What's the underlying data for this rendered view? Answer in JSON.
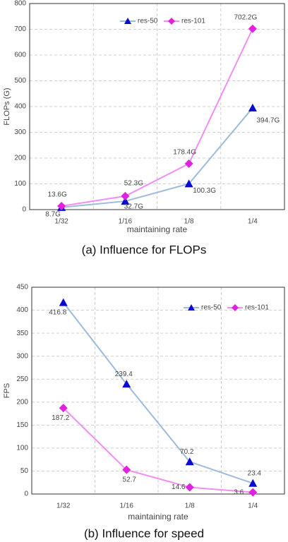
{
  "chart_data": [
    {
      "type": "line",
      "caption": "(a) Influence for FLOPs",
      "x_label": "maintaining rate",
      "y_label": "FLOPs (G)",
      "categories": [
        "1/32",
        "1/16",
        "1/8",
        "1/4"
      ],
      "series": [
        {
          "name": "res-50",
          "color": "#9dbbdb",
          "marker_color": "#0a0ad0",
          "marker": "triangle",
          "values": [
            8.7,
            32.7,
            100.3,
            394.7
          ],
          "value_labels": [
            "8.7G",
            "32.7G",
            "100.3G",
            "394.7G"
          ]
        },
        {
          "name": "res-101",
          "color": "#f28ef2",
          "marker_color": "#e022e0",
          "marker": "diamond",
          "values": [
            13.6,
            52.3,
            178.4,
            702.2
          ],
          "value_labels": [
            "13.6G",
            "52.3G",
            "178.4G",
            "702.2G"
          ]
        }
      ],
      "ylim": [
        0,
        800
      ],
      "yticks": [
        0,
        100,
        200,
        300,
        400,
        500,
        600,
        700,
        800
      ],
      "grid": true
    },
    {
      "type": "line",
      "caption": "(b) Influence for speed",
      "x_label": "maintaining rate",
      "y_label": "FPS",
      "categories": [
        "1/32",
        "1/16",
        "1/8",
        "1/4"
      ],
      "series": [
        {
          "name": "res-50",
          "color": "#9dbbdb",
          "marker_color": "#0a0ad0",
          "marker": "triangle",
          "values": [
            416.8,
            239.4,
            70.2,
            23.4
          ]
        },
        {
          "name": "res-101",
          "color": "#f28ef2",
          "marker_color": "#e022e0",
          "marker": "diamond",
          "values": [
            187.2,
            52.7,
            14.6,
            3.6
          ]
        }
      ],
      "ylim": [
        0,
        450
      ],
      "yticks": [
        0,
        50,
        100,
        150,
        200,
        250,
        300,
        350,
        400,
        450
      ],
      "grid": true
    }
  ]
}
